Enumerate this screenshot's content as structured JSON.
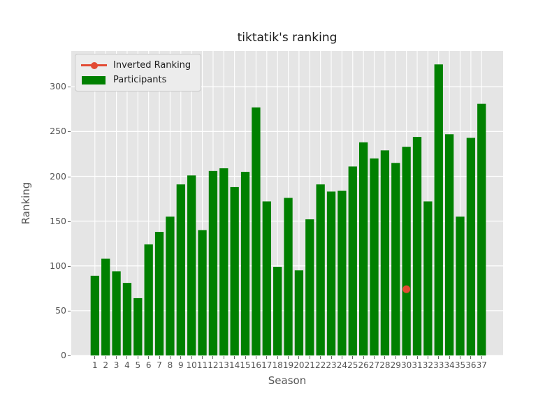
{
  "title": "tiktatik's ranking",
  "chart_data": {
    "type": "bar",
    "title": "tiktatik's ranking",
    "xlabel": "Season",
    "ylabel": "Ranking",
    "categories": [
      "1",
      "2",
      "3",
      "4",
      "5",
      "6",
      "7",
      "8",
      "9",
      "10",
      "11",
      "12",
      "13",
      "14",
      "15",
      "16",
      "17",
      "18",
      "19",
      "20",
      "21",
      "22",
      "23",
      "24",
      "25",
      "26",
      "27",
      "28",
      "29",
      "30",
      "31",
      "32",
      "33",
      "34",
      "35",
      "36",
      "37"
    ],
    "series": [
      {
        "name": "Inverted Ranking",
        "type": "scatter",
        "color": "#E24A33",
        "points": [
          {
            "x": 30,
            "y": 74
          }
        ]
      },
      {
        "name": "Participants",
        "type": "bar",
        "color": "#008000",
        "values": [
          89,
          108,
          94,
          81,
          64,
          124,
          138,
          155,
          191,
          201,
          140,
          206,
          209,
          188,
          205,
          277,
          172,
          99,
          176,
          95,
          152,
          191,
          183,
          184,
          211,
          238,
          220,
          229,
          215,
          233,
          244,
          172,
          325,
          247,
          155,
          243,
          281
        ]
      }
    ],
    "yticks": [
      0,
      50,
      100,
      150,
      200,
      250,
      300
    ],
    "ylim": [
      0,
      340
    ],
    "xlim": [
      -1.2,
      39.0
    ],
    "grid": true,
    "legend_position": "upper-left",
    "colors": {
      "figure_bg": "#FFFFFF",
      "plot_bg": "#E5E5E5",
      "grid": "#FFFFFF",
      "tick_text": "#555555",
      "title_text": "#1A1A1A"
    }
  }
}
